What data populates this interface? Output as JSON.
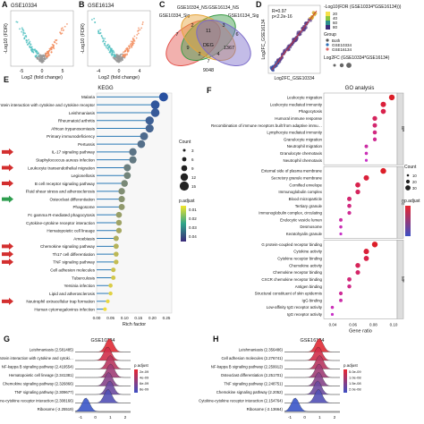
{
  "panels": {
    "A": {
      "label": "A",
      "title": "GSE10334",
      "xlabel": "Log2 (fold change)",
      "ylabel": "-Log10 (FDR)",
      "xticks": [
        "-5",
        "0",
        "5"
      ]
    },
    "B": {
      "label": "B",
      "title": "GSE16134",
      "xlabel": "Log2 (fold change)",
      "ylabel": "-Log10 (FDR)",
      "xticks": [
        "-4",
        "0",
        "4"
      ]
    },
    "C": {
      "label": "C",
      "sets": [
        "GSE10334_NS",
        "GSE16134_NS",
        "GSE10334_Sig",
        "GSE16134_Sig"
      ],
      "counts": [
        "7",
        "6",
        "2",
        "3",
        "11",
        "9",
        "1367",
        "DEG",
        "2",
        "4",
        "7",
        "9048"
      ]
    },
    "D": {
      "label": "D",
      "stats": [
        "R=0.97",
        "p<2.2e-16"
      ],
      "xlabel": "Log2FC_GSE10334",
      "ylabel": "Log2FC_GSE16134",
      "legend_title": "-Log10(FDR (GSE10334*GSE16134)))",
      "legend_values": [
        "20",
        "40",
        "60",
        "80"
      ],
      "group_title": "Group",
      "groups": [
        "Both",
        "GSE10334",
        "GSE16134"
      ],
      "size_title": "Log2FC (GSE10334*GSE16134)"
    },
    "E": {
      "label": "E",
      "title": "KEGG",
      "xlabel": "Rich factor",
      "xticks": [
        "0.00",
        "0.05",
        "0.10",
        "0.15",
        "0.20",
        "0.25"
      ],
      "count_title": "Count",
      "count_values": [
        "3",
        "6",
        "9",
        "12",
        "15"
      ],
      "padj_title": "p.adjust",
      "padj_values": [
        "0.01",
        "0.02",
        "0.03",
        "0.04"
      ],
      "terms": [
        "Malaria",
        "Viral protein interaction with cytokine and cytokine receptor",
        "Leishmaniasis",
        "Rheumatoid arthritis",
        "African trypanosomiasis",
        "Primary immunodeficiency",
        "Pertussis",
        "IL-17 signaling pathway",
        "Staphylococcus aureus infection",
        "Leukocyte transendothelial migration",
        "Legionellosis",
        "B cell receptor signaling pathway",
        "Fluid shear stress and atherosclerosis",
        "Osteoclast differentiation",
        "Phagosome",
        "Fc gamma R-mediated phagocytosis",
        "Cytokine-cytokine receptor interaction",
        "Hematopoietic cell lineage",
        "Amoebiasis",
        "Chemokine signaling pathway",
        "Th17 cell differentiation",
        "TNF signaling pathway",
        "Cell adhesion molecules",
        "Tuberculosis",
        "Yersinia infection",
        "Lipid and atherosclerosis",
        "Neutrophil extracellular trap formation",
        "Human cytomegalovirus infection"
      ]
    },
    "F": {
      "label": "F",
      "title": "GO analysis",
      "xlabel": "Gene ratio",
      "xticks": [
        "0.04",
        "0.06",
        "0.08",
        "0.10"
      ],
      "count_title": "Count",
      "count_values": [
        "10",
        "20",
        "30"
      ],
      "padj_title": "p.adjust",
      "groups": [
        {
          "side": "BP",
          "terms": [
            "Leukocyte migration",
            "Leukocyte mediated immunity",
            "Phagocytosis",
            "Humoral immune response",
            "Recombination of immune receptors built from adaptive immune response based on somatic immunoglobulin superfamily domains",
            "Lymphocyte mediated immunity",
            "Granulocyte migration",
            "Neutrophil migration",
            "Granulocyte chemotaxis",
            "Neutrophil chemotaxis"
          ]
        },
        {
          "side": "CC",
          "terms": [
            "External side of plasma membrane",
            "Secretory granule membrane",
            "Cornified envelope",
            "Immunoglobulin complex",
            "Blood microparticle",
            "Tertiary granule",
            "Immunoglobulin complex, circulating",
            "Endocytic vesicle lumen",
            "Desmosome",
            "Keratohyalin granule"
          ]
        },
        {
          "side": "MF",
          "terms": [
            "G protein-coupled receptor binding",
            "Cytokine activity",
            "Cytokine receptor binding",
            "Chemokine activity",
            "Chemokine receptor binding",
            "CXCR chemokine receptor binding",
            "Antigen binding",
            "Structural constituent of skin epidermis",
            "IgG binding",
            "Low-affinity IgG receptor activity",
            "IgG receptor activity"
          ]
        }
      ]
    },
    "G": {
      "label": "G",
      "title": "GSE10334",
      "padj_title": "p.adjust",
      "padj_values": [
        "2e-09",
        "4e-09",
        "6e-09",
        "8e-09"
      ],
      "xticks": [
        "-1",
        "0",
        "1",
        "2"
      ],
      "terms": [
        "Leishmaniasis (2.581485)",
        "Viral protein interaction with cytokine and cytokine receptor (2.474451)",
        "NF-kappa B signaling pathway (2.419554)",
        "Hematopoietic cell lineage (2.341381)",
        "Chemokine signaling pathway (2.326866)",
        "TNF signaling pathway (2.309677)",
        "Cytokine-cytokine receptor interaction (2.308166)",
        "Ribosome (-2.25519)"
      ]
    },
    "H": {
      "label": "H",
      "title": "GSE16134",
      "padj_title": "p.adjust",
      "padj_values": [
        "5.0e-09",
        "1.0e-08",
        "1.5e-08",
        "2.0e-08"
      ],
      "xticks": [
        "-1",
        "0",
        "1",
        "2"
      ],
      "terms": [
        "Leishmaniasis (2.356486)",
        "Cell adhesion molecules (2.276741)",
        "NF-kappa B signaling pathway (2.259912)",
        "Osteoclast differentiation (2.251701)",
        "TNF signaling pathway (2.248751)",
        "Chemokine signaling pathway (2.2052)",
        "Cytokine-cytokine receptor interaction (2.154764)",
        "Ribosome (-2.13664)"
      ]
    }
  },
  "chart_data": [
    {
      "type": "scatter",
      "title": "GSE10334",
      "xlabel": "Log2 (fold change)",
      "ylabel": "-Log10 (FDR)"
    },
    {
      "type": "scatter",
      "title": "GSE16134",
      "xlabel": "Log2 (fold change)",
      "ylabel": "-Log10 (FDR)"
    },
    {
      "type": "scatter",
      "xlabel": "Log2FC_GSE10334",
      "ylabel": "Log2FC_GSE16134",
      "stats": [
        "R=0.97",
        "p<2.2e-16"
      ]
    },
    {
      "type": "scatter",
      "title": "KEGG",
      "xlabel": "Rich factor",
      "xlim": [
        0,
        0.25
      ],
      "categories": [
        "Malaria",
        "Viral protein interaction with cytokine and cytokine receptor",
        "Leishmaniasis",
        "Rheumatoid arthritis",
        "African trypanosomiasis",
        "Primary immunodeficiency",
        "Pertussis",
        "IL-17 signaling pathway",
        "Staphylococcus aureus infection",
        "Leukocyte transendothelial migration",
        "Legionellosis",
        "B cell receptor signaling pathway",
        "Fluid shear stress and atherosclerosis",
        "Osteoclast differentiation",
        "Phagosome",
        "Fc gamma R-mediated phagocytosis",
        "Cytokine-cytokine receptor interaction",
        "Hematopoietic cell lineage",
        "Amoebiasis",
        "Chemokine signaling pathway",
        "Th17 cell differentiation",
        "TNF signaling pathway",
        "Cell adhesion molecules",
        "Tuberculosis",
        "Yersinia infection",
        "Lipid and atherosclerosis",
        "Neutrophil extracellular trap formation",
        "Human cytomegalovirus infection"
      ],
      "values": [
        0.24,
        0.21,
        0.21,
        0.19,
        0.19,
        0.17,
        0.16,
        0.13,
        0.13,
        0.11,
        0.11,
        0.1,
        0.09,
        0.09,
        0.09,
        0.08,
        0.08,
        0.08,
        0.07,
        0.07,
        0.07,
        0.07,
        0.06,
        0.06,
        0.05,
        0.05,
        0.04,
        0.03
      ]
    },
    {
      "type": "scatter",
      "title": "GO analysis",
      "xlabel": "Gene ratio",
      "xlim": [
        0.03,
        0.11
      ],
      "values": [
        0.11,
        0.1,
        0.1,
        0.09,
        0.09,
        0.09,
        0.09,
        0.08,
        0.08,
        0.08,
        0.1,
        0.08,
        0.07,
        0.07,
        0.06,
        0.06,
        0.06,
        0.05,
        0.05,
        0.05,
        0.09,
        0.08,
        0.08,
        0.07,
        0.07,
        0.06,
        0.06,
        0.05,
        0.05,
        0.04,
        0.04
      ]
    }
  ]
}
